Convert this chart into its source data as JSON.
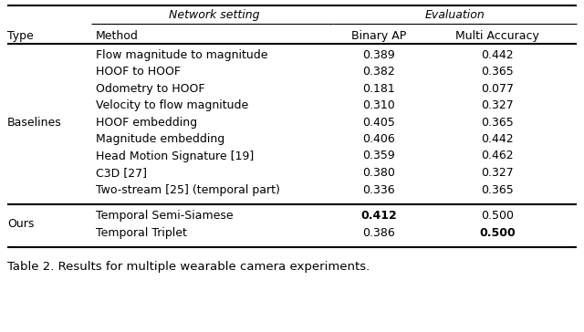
{
  "title": "Table 2. Results for multiple wearable camera experiments.",
  "header_group1": "Network setting",
  "header_group2": "Evaluation",
  "col_headers": [
    "Type",
    "Method",
    "Binary AP",
    "Multi Accuracy"
  ],
  "baselines_rows": [
    [
      "Flow magnitude to magnitude",
      "0.389",
      "0.442"
    ],
    [
      "HOOF to HOOF",
      "0.382",
      "0.365"
    ],
    [
      "Odometry to HOOF",
      "0.181",
      "0.077"
    ],
    [
      "Velocity to flow magnitude",
      "0.310",
      "0.327"
    ],
    [
      "HOOF embedding",
      "0.405",
      "0.365"
    ],
    [
      "Magnitude embedding",
      "0.406",
      "0.442"
    ],
    [
      "Head Motion Signature [19]",
      "0.359",
      "0.462"
    ],
    [
      "C3D [27]",
      "0.380",
      "0.327"
    ],
    [
      "Two-stream [25] (temporal part)",
      "0.336",
      "0.365"
    ]
  ],
  "ours_rows": [
    [
      "Temporal Semi-Siamese",
      "0.412",
      "0.500",
      true,
      false
    ],
    [
      "Temporal Triplet",
      "0.386",
      "0.500",
      false,
      true
    ]
  ],
  "baselines_type": "Baselines",
  "ours_type": "Ours",
  "bg_color": "#ffffff",
  "text_color": "#000000",
  "font_size": 9.0,
  "caption_font_size": 9.5
}
